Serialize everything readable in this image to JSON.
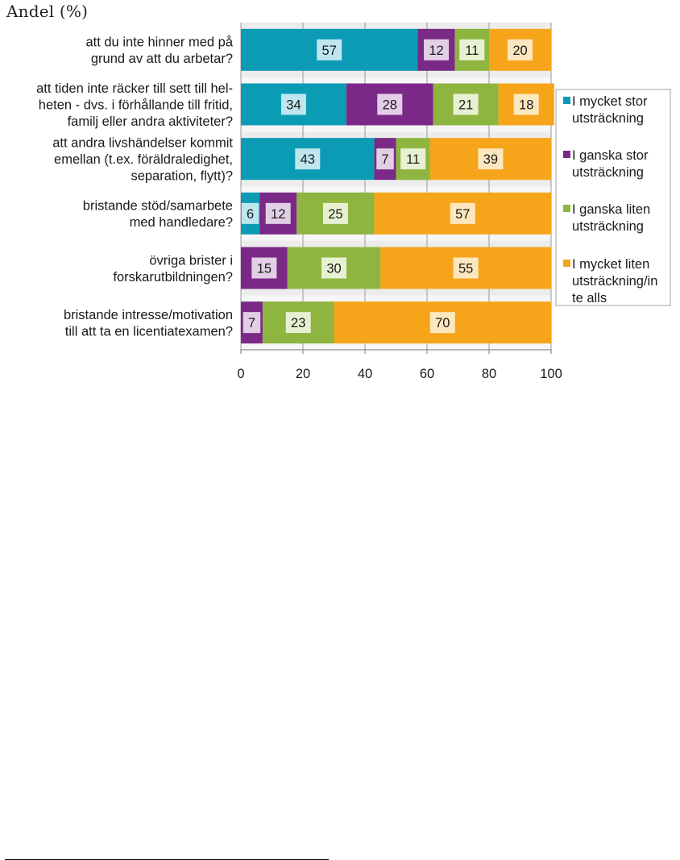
{
  "chart_data": {
    "type": "bar",
    "orientation": "horizontal",
    "stacked": true,
    "ylabel": "Andel (%)",
    "categories": [
      [
        "att du inte hinner med på",
        "grund av att du arbetar?"
      ],
      [
        "att tiden inte räcker till sett till hel-",
        "heten - dvs. i förhållande till fritid,",
        "familj eller andra aktiviteter?"
      ],
      [
        "att andra livshändelser kommit",
        "emellan (t.ex. föräldraledighet,",
        "separation, flytt)?"
      ],
      [
        "bristande stöd/samarbete",
        "med handledare?"
      ],
      [
        "övriga brister i",
        "forskarutbildningen?"
      ],
      [
        "bristande intresse/motivation",
        "till att ta en licentiatexamen?"
      ]
    ],
    "series": [
      {
        "name": [
          "I mycket stor",
          "utsträckning"
        ],
        "color": "#0b9bb5",
        "label_bg": "#bfe6ee",
        "values": [
          57,
          34,
          43,
          6,
          0,
          0
        ]
      },
      {
        "name": [
          "I ganska stor",
          "utsträckning"
        ],
        "color": "#7a2a86",
        "label_bg": "#e2cfe6",
        "values": [
          12,
          28,
          7,
          12,
          15,
          7
        ]
      },
      {
        "name": [
          "I ganska liten",
          "utsträckning"
        ],
        "color": "#8eb53f",
        "label_bg": "#e8f0d2",
        "values": [
          11,
          21,
          11,
          25,
          30,
          23
        ]
      },
      {
        "name": [
          "I mycket liten",
          "utsträckning/in",
          "te alls"
        ],
        "color": "#f6a51b",
        "label_bg": "#fde7bf",
        "values": [
          20,
          18,
          39,
          57,
          55,
          70
        ]
      }
    ],
    "xlim": [
      0,
      100
    ],
    "xticks": [
      "0",
      "20",
      "40",
      "60",
      "80",
      "100"
    ],
    "grid": true,
    "legend_position": "right"
  }
}
